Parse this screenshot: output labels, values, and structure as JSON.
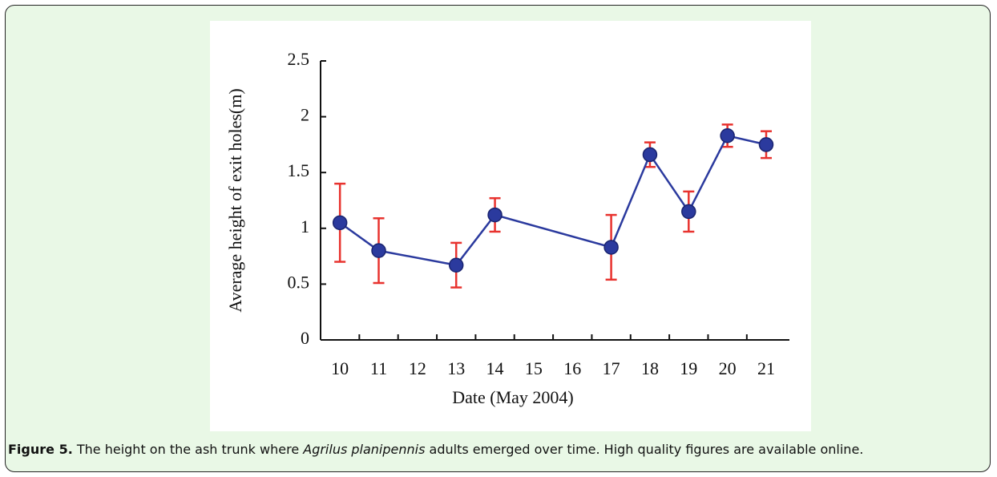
{
  "chart_data": {
    "type": "line",
    "x": [
      10,
      11,
      13,
      14,
      17,
      18,
      19,
      20,
      21
    ],
    "series": [
      {
        "values": [
          1.05,
          0.8,
          0.67,
          1.12,
          0.83,
          1.66,
          1.15,
          1.83,
          1.75
        ],
        "errors": [
          0.35,
          0.29,
          0.2,
          0.15,
          0.29,
          0.11,
          0.18,
          0.1,
          0.12
        ],
        "color": "#2b3a9e",
        "error_color": "#e8332f"
      }
    ],
    "xlabel": "Date (May 2004)",
    "ylabel": "Average height of exit holes(m)",
    "xlim": [
      9.5,
      21.6
    ],
    "xticks": [
      10,
      11,
      12,
      13,
      14,
      15,
      16,
      17,
      18,
      19,
      20,
      21
    ],
    "ylim": [
      0,
      2.5
    ],
    "yticks": [
      0,
      0.5,
      1,
      1.5,
      2,
      2.5
    ]
  },
  "caption": {
    "label": "Figure 5.",
    "text_before": "The height on the ash trunk where ",
    "species": "Agrilus planipennis",
    "text_after": " adults emerged over time. High quality figures are available online."
  }
}
